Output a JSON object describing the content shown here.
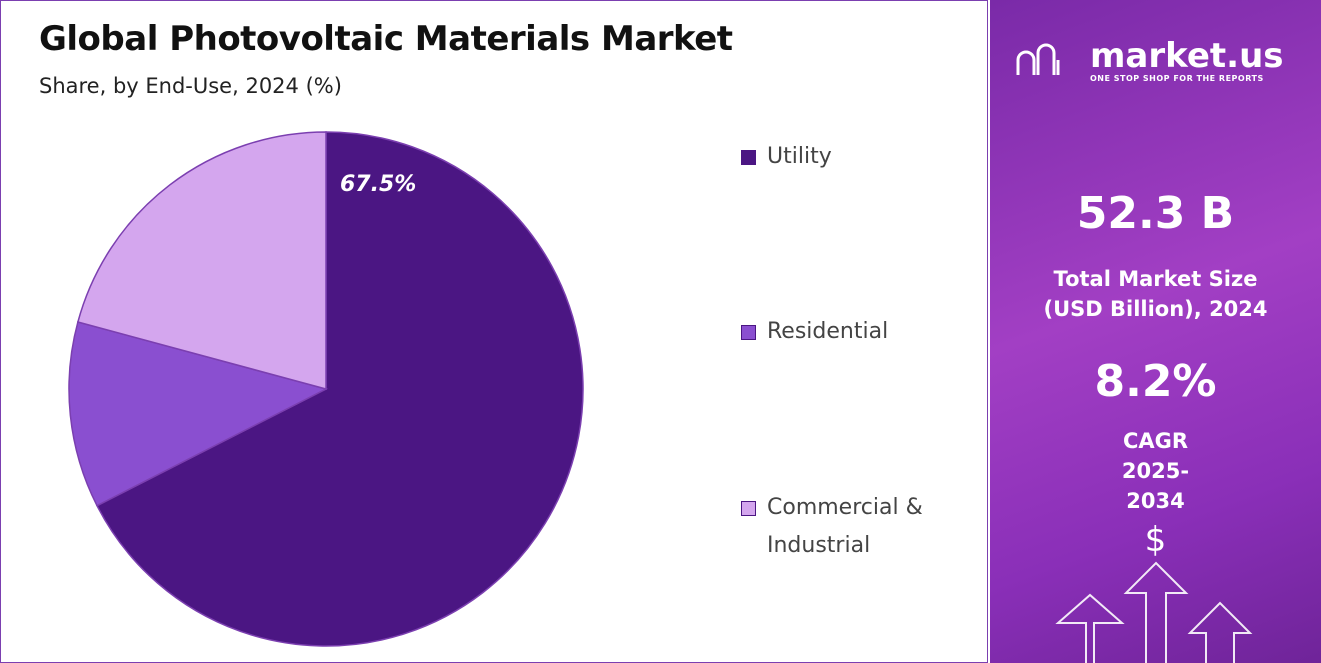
{
  "chart_data": {
    "type": "pie",
    "title": "Global Photovoltaic Materials Market",
    "subtitle": "Share, by End-Use, 2024 (%)",
    "categories": [
      "Utility",
      "Residential",
      "Commercial & Industrial"
    ],
    "values": [
      67.5,
      11.7,
      20.8
    ],
    "value_labels": [
      "67.5%",
      null,
      null
    ],
    "colors": [
      "#4b1683",
      "#8a4fd0",
      "#d4a6ee"
    ],
    "legend": "right"
  },
  "panel": {
    "brand": "market.us",
    "tagline": "ONE STOP SHOP FOR THE REPORTS",
    "market_size": "52.3 B",
    "market_size_label": "Total Market Size (USD Billion), 2024",
    "cagr": "8.2%",
    "cagr_label": "CAGR 2025-2034",
    "icon": "$"
  }
}
